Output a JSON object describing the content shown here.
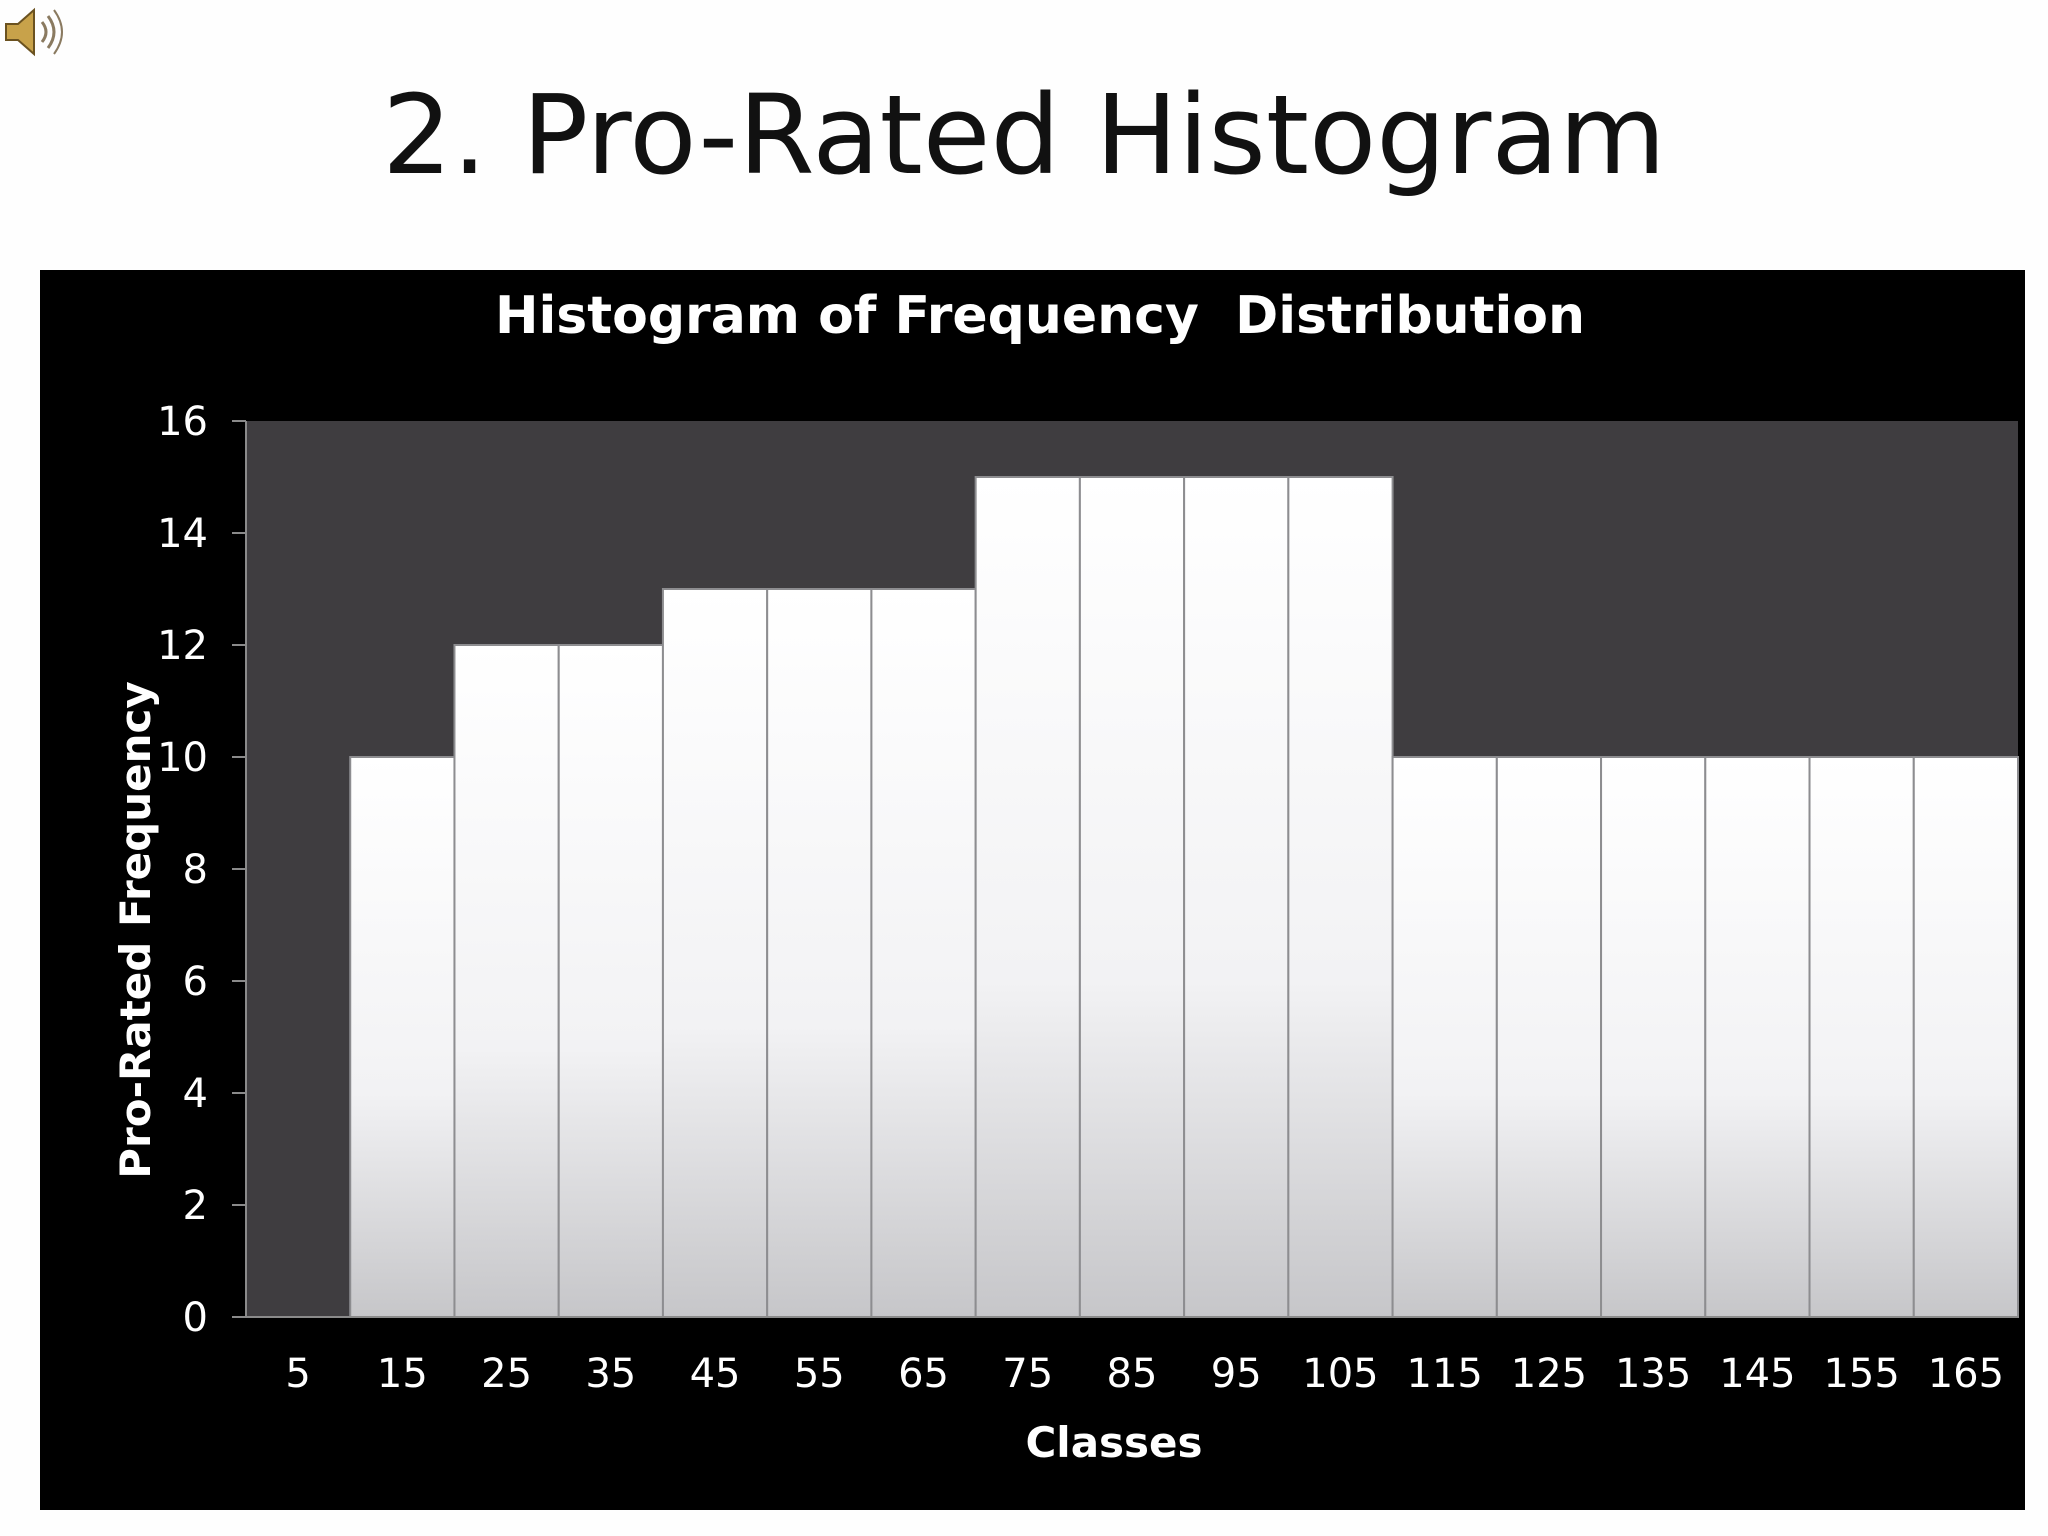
{
  "slide": {
    "title": "2. Pro-Rated Histogram",
    "speaker_icon": "speaker-icon"
  },
  "colors": {
    "panel_background": "#000000",
    "plot_background": "#3f3d40",
    "bar_fill_top": "#ffffff",
    "bar_fill_bottom": "#c9c9cc",
    "axis_text": "#ffffff"
  },
  "chart_data": {
    "type": "bar",
    "title": "Histogram of Frequency  Distribution",
    "xlabel": "Classes",
    "ylabel": "Pro-Rated Frequency",
    "categories": [
      "5",
      "15",
      "25",
      "35",
      "45",
      "55",
      "65",
      "75",
      "85",
      "95",
      "105",
      "115",
      "125",
      "135",
      "145",
      "155",
      "165"
    ],
    "values": [
      0,
      10,
      12,
      12,
      13,
      13,
      13,
      15,
      15,
      15,
      15,
      10,
      10,
      10,
      10,
      10,
      10
    ],
    "ylim": [
      0,
      16
    ],
    "yticks": [
      0,
      2,
      4,
      6,
      8,
      10,
      12,
      14,
      16
    ],
    "grid": false,
    "legend": "none"
  }
}
